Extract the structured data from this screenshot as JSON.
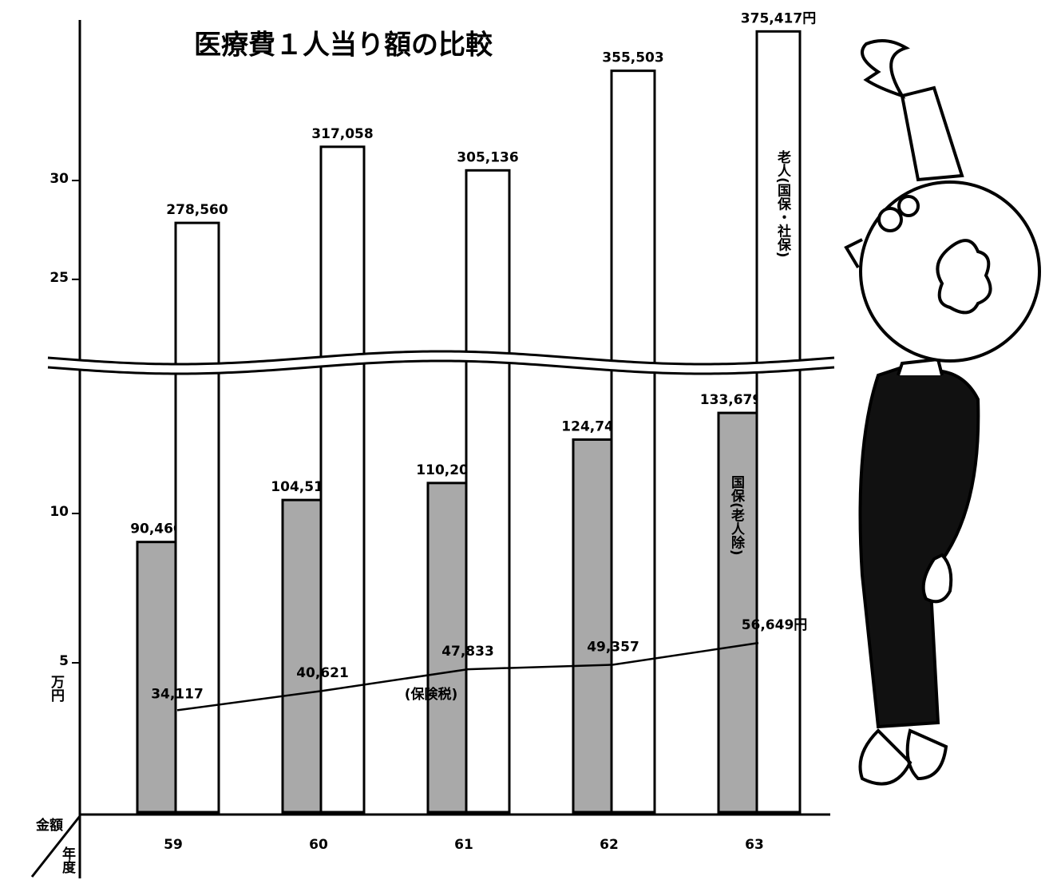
{
  "chart_data": {
    "type": "bar",
    "title": "医療費１人当り額の比較",
    "categories": [
      "59",
      "60",
      "61",
      "62",
      "63"
    ],
    "y_label": "金額",
    "x_label": "年度",
    "y_unit": "万円",
    "series": [
      {
        "name": "国保(老人除)",
        "type": "bar",
        "color": "#a9a9a9",
        "values": [
          9.046,
          10.4519,
          11.0207,
          12.4748,
          13.3679
        ],
        "value_labels": [
          "90,460",
          "104,519",
          "110,207",
          "124,748",
          "133,679円"
        ]
      },
      {
        "name": "老人(国保・社保)",
        "type": "bar",
        "color": "#ffffff",
        "values": [
          27.856,
          31.7058,
          30.5136,
          35.5503,
          37.5417
        ],
        "value_labels": [
          "278,560",
          "317,058",
          "305,136",
          "355,503",
          "375,417円"
        ]
      },
      {
        "name": "(保険税)",
        "type": "line",
        "color": "#000000",
        "values": [
          3.4117,
          4.0621,
          4.7833,
          4.9357,
          5.6649
        ],
        "value_labels": [
          "34,117",
          "40,621",
          "47,833",
          "49,357",
          "56,649円"
        ]
      }
    ],
    "ylim": [
      0,
      38
    ],
    "y_break": [
      14.6,
      21.6
    ],
    "yticks": [
      5,
      10,
      25,
      30
    ]
  }
}
